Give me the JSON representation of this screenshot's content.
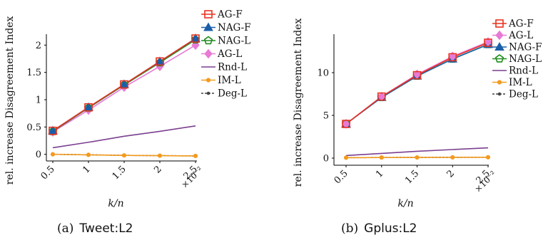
{
  "chart_data": [
    {
      "type": "line",
      "caption_prefix": "(a)",
      "caption_name": "Tweet:L2",
      "xlabel": "k/n",
      "ylabel": "rel. increase Disagreement Index",
      "x": [
        0.5,
        1,
        1.5,
        2,
        2.5
      ],
      "x_tick_labels": [
        "0.5",
        "1",
        "1.5",
        "2",
        "2.5"
      ],
      "x_multiplier": "×10⁻²",
      "y_ticks": [
        0,
        0.5,
        1,
        1.5,
        2
      ],
      "y_tick_labels": [
        "0",
        "0.5",
        "1",
        "1.5",
        "2"
      ],
      "ylim": [
        -0.07,
        2.2
      ],
      "series": [
        {
          "name": "AG-F",
          "values": [
            0.43,
            0.86,
            1.28,
            1.7,
            2.12
          ],
          "color": "#e8321f",
          "marker": "square"
        },
        {
          "name": "NAG-F",
          "values": [
            0.43,
            0.86,
            1.28,
            1.7,
            2.12
          ],
          "color": "#1a5fa8",
          "marker": "triangle"
        },
        {
          "name": "NAG-L",
          "values": [
            0.42,
            0.85,
            1.27,
            1.68,
            2.1
          ],
          "color": "#1e8a1e",
          "marker": "pentagon"
        },
        {
          "name": "AG-L",
          "values": [
            0.41,
            0.81,
            1.23,
            1.61,
            2.0
          ],
          "color": "#e87ad6",
          "marker": "diamond"
        },
        {
          "name": "Rnd-L",
          "values": [
            0.12,
            0.22,
            0.33,
            0.42,
            0.52
          ],
          "color": "#7b3f8f",
          "marker": "none"
        },
        {
          "name": "IM-L",
          "values": [
            0.0,
            -0.01,
            -0.02,
            -0.025,
            -0.03
          ],
          "color": "#f39b1f",
          "marker": "circle"
        },
        {
          "name": "Deg-L",
          "values": [
            0.0,
            -0.01,
            -0.02,
            -0.025,
            -0.03
          ],
          "color": "#444444",
          "marker": "dot-dashed"
        }
      ]
    },
    {
      "type": "line",
      "caption_prefix": "(b)",
      "caption_name": "Gplus:L2",
      "xlabel": "k/n",
      "ylabel": "rel. increase Disagreement Index",
      "x": [
        0.5,
        1,
        1.5,
        2,
        2.5
      ],
      "x_tick_labels": [
        "0.5",
        "1",
        "1.5",
        "2",
        "2.5"
      ],
      "x_multiplier": "×10⁻²",
      "y_ticks": [
        0,
        5,
        10
      ],
      "y_tick_labels": [
        "0",
        "5",
        "10"
      ],
      "ylim": [
        -0.5,
        14.5
      ],
      "series": [
        {
          "name": "AG-F",
          "values": [
            4.0,
            7.2,
            9.7,
            11.8,
            13.5
          ],
          "color": "#e8321f",
          "marker": "square"
        },
        {
          "name": "AG-L",
          "values": [
            4.0,
            7.2,
            9.8,
            11.9,
            13.6
          ],
          "color": "#e87ad6",
          "marker": "diamond"
        },
        {
          "name": "NAG-F",
          "values": [
            4.0,
            7.1,
            9.6,
            11.6,
            13.3
          ],
          "color": "#1a5fa8",
          "marker": "triangle"
        },
        {
          "name": "NAG-L",
          "values": [
            4.0,
            7.1,
            9.6,
            11.6,
            13.3
          ],
          "color": "#1e8a1e",
          "marker": "pentagon"
        },
        {
          "name": "Rnd-L",
          "values": [
            0.3,
            0.55,
            0.8,
            1.0,
            1.2
          ],
          "color": "#7b3f8f",
          "marker": "none"
        },
        {
          "name": "IM-L",
          "values": [
            0.05,
            0.07,
            0.08,
            0.09,
            0.1
          ],
          "color": "#f39b1f",
          "marker": "circle"
        },
        {
          "name": "Deg-L",
          "values": [
            0.05,
            0.07,
            0.08,
            0.09,
            0.1
          ],
          "color": "#444444",
          "marker": "dot-dashed"
        }
      ]
    }
  ]
}
